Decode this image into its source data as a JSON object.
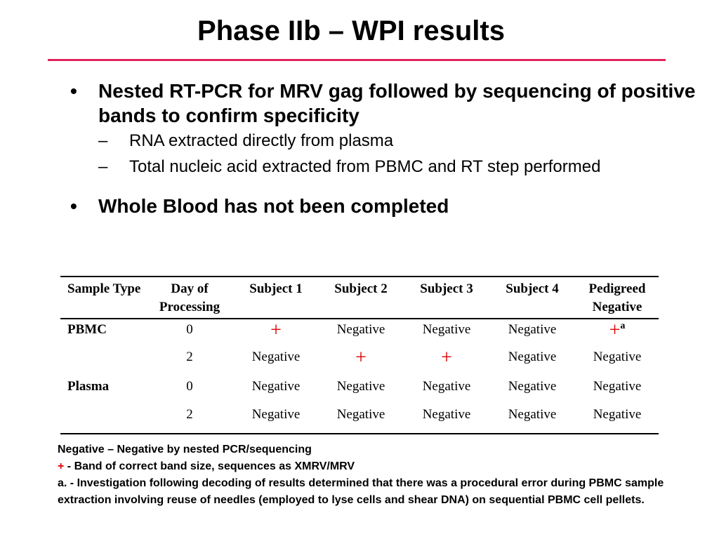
{
  "title": "Phase IIb – WPI results",
  "bullets": [
    {
      "text": "Nested RT-PCR for MRV gag followed by sequencing of positive bands to confirm specificity",
      "subitems": [
        "RNA extracted directly from plasma",
        "Total nucleic acid extracted from PBMC and RT step performed"
      ]
    },
    {
      "text": "Whole Blood has not been completed"
    }
  ],
  "table": {
    "headers": [
      "Sample Type",
      "Day of Processing",
      "Subject 1",
      "Subject 2",
      "Subject 3",
      "Subject 4",
      "Pedigreed Negative"
    ],
    "rows": [
      [
        "PBMC",
        "0",
        "+",
        "Negative",
        "Negative",
        "Negative",
        "+"
      ],
      [
        "",
        "2",
        "Negative",
        "+",
        "+",
        "Negative",
        "Negative"
      ],
      [
        "Plasma",
        "0",
        "Negative",
        "Negative",
        "Negative",
        "Negative",
        "Negative"
      ],
      [
        "",
        "2",
        "Negative",
        "Negative",
        "Negative",
        "Negative",
        "Negative"
      ]
    ],
    "pedigreed_pbmc_day0_note": "a"
  },
  "footnotes": {
    "negative": "Negative – Negative by nested PCR/sequencing",
    "plus_symbol": "+",
    "plus": " - Band of correct band size, sequences as XMRV/MRV",
    "note_a": "a. - Investigation following decoding of results determined that there was a procedural error during PBMC sample extraction involving reuse of needles (employed to lyse cells and shear DNA) on sequential PBMC cell pellets."
  },
  "colors": {
    "accent": "#e0245e",
    "positive": "#e00000"
  }
}
